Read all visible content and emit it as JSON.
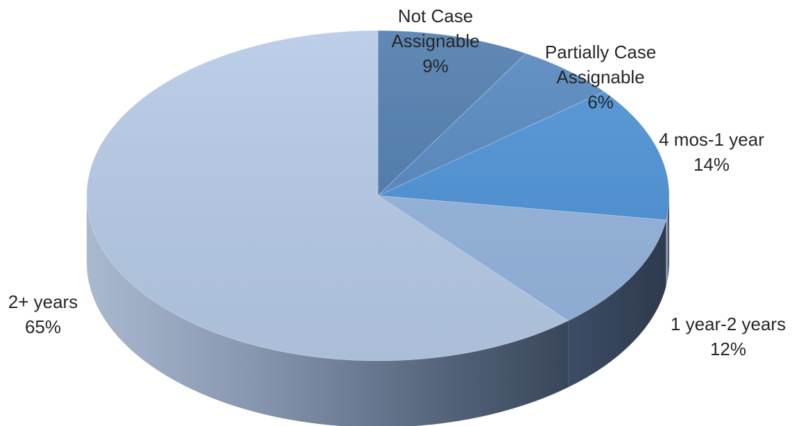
{
  "chart_data": {
    "type": "pie",
    "style": "3d",
    "slices": [
      {
        "label": "Not Case Assignable",
        "label_lines": [
          "Not Case",
          "Assignable"
        ],
        "pct_text": "9%",
        "value": 9,
        "color": "#4f7cae"
      },
      {
        "label": "Partially Case Assignable",
        "label_lines": [
          "Partially Case",
          "Assignable"
        ],
        "pct_text": "6%",
        "value": 6,
        "color": "#5688c0"
      },
      {
        "label": "4 mos-1 year",
        "label_lines": [
          "4 mos-1 year"
        ],
        "pct_text": "14%",
        "value": 14,
        "color": "#4e92d6"
      },
      {
        "label": "1 year-2 years",
        "label_lines": [
          "1 year-2 years"
        ],
        "pct_text": "12%",
        "value": 12,
        "color": "#95b4de"
      },
      {
        "label": "2+ years",
        "label_lines": [
          "2+ years"
        ],
        "pct_text": "65%",
        "value": 65,
        "color": "#b6cae6"
      }
    ],
    "legend": "none",
    "data_labels": "outside"
  }
}
